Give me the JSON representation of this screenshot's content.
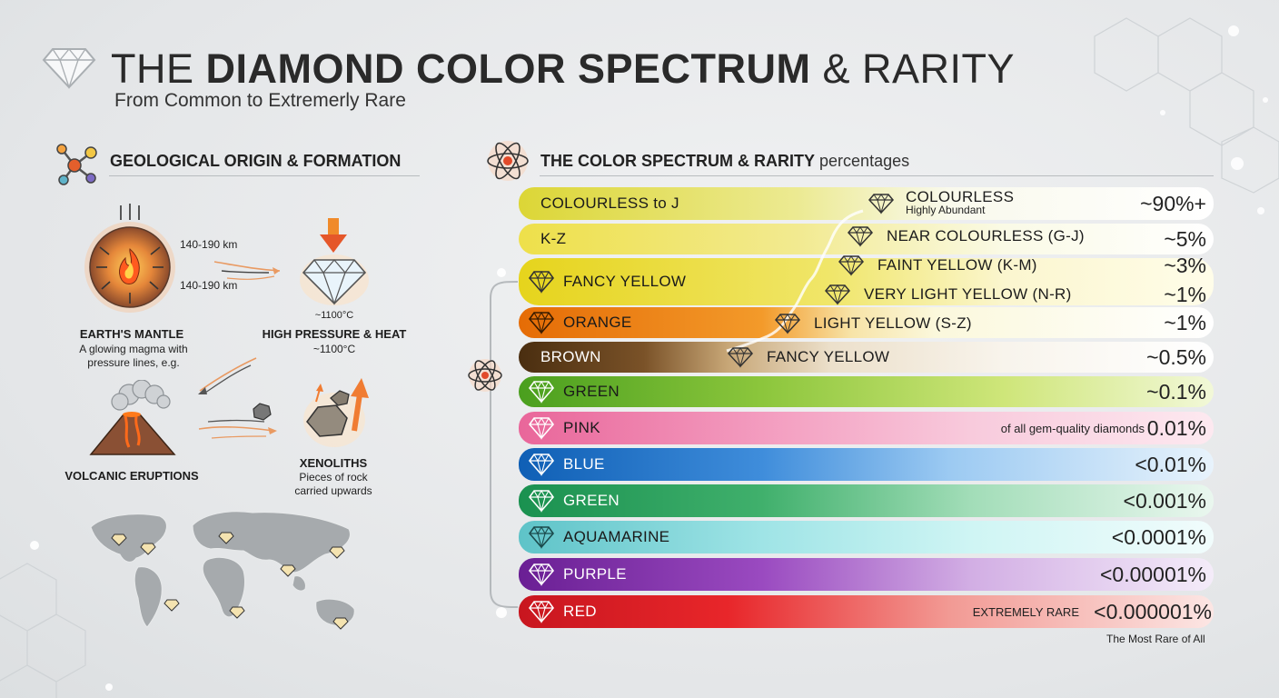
{
  "header": {
    "title_light": "THE",
    "title_bold": "DIAMOND COLOR SPECTRUM",
    "title_rest": "& RARITY",
    "subtitle": "From Common to Extremerly Rare"
  },
  "geology": {
    "heading": "GEOLOGICAL ORIGIN & FORMATION",
    "depth_top": "140-190 km",
    "depth_bottom": "140-190 km",
    "temp_small": "~1100°C",
    "mantle_title": "EARTH'S MANTLE",
    "mantle_desc": "A glowing magma with pressure lines, e.g.",
    "pressure_title": "HIGH PRESSURE & HEAT",
    "pressure_temp": "~1100°C",
    "volcano_title": "VOLCANIC ERUPTIONS",
    "xenolith_title": "XENOLITHS",
    "xenolith_desc": "Pieces of rock carried upwards"
  },
  "spectrum": {
    "heading_bold": "THE COLOR SPECTRUM & RARITY",
    "heading_light": "percentages",
    "rows": [
      {
        "name": "COLOURLESS to J",
        "pct": "~90%+"
      },
      {
        "name": "K-Z",
        "pct": "~5%"
      },
      {
        "name": "FANCY YELLOW",
        "pct": "~3%"
      },
      {
        "name": "",
        "pct": "~1%"
      },
      {
        "name": "ORANGE",
        "pct": "~1%"
      },
      {
        "name": "BROWN",
        "pct": "~0.5%"
      },
      {
        "name": "GREEN",
        "pct": "~0.1%"
      },
      {
        "name": "PINK",
        "pct": "0.01%",
        "note": "of all gem-quality diamonds"
      },
      {
        "name": "BLUE",
        "pct": "<0.01%"
      },
      {
        "name": "GREEN",
        "pct": "<0.001%"
      },
      {
        "name": "AQUAMARINE",
        "pct": "<0.0001%"
      },
      {
        "name": "PURPLE",
        "pct": "<0.00001%"
      },
      {
        "name": "RED",
        "pct": "<0.000001%",
        "note": "EXTREMELY RARE"
      }
    ],
    "sub_grades": [
      {
        "label": "COLOURLESS",
        "desc": "Highly Abundant"
      },
      {
        "label": "NEAR COLOURLESS (G-J)"
      },
      {
        "label": "FAINT YELLOW (K-M)"
      },
      {
        "label": "VERY LIGHT YELLOW (N-R)"
      },
      {
        "label": "LIGHT YELLOW (S-Z)"
      },
      {
        "label": "FANCY YELLOW"
      }
    ],
    "footnote": "The Most Rare of All"
  },
  "colors": {
    "colourless": "#f4f6c8",
    "yellow": "#e8de30",
    "orange": "#e9730c",
    "brown": "#5b3a17",
    "green": "#6ab82e",
    "pink": "#ec7aa6",
    "blue": "#1665b8",
    "green2": "#1f9a52",
    "aqua": "#6fcfd2",
    "purple": "#7a28a0",
    "red": "#d91c24"
  }
}
